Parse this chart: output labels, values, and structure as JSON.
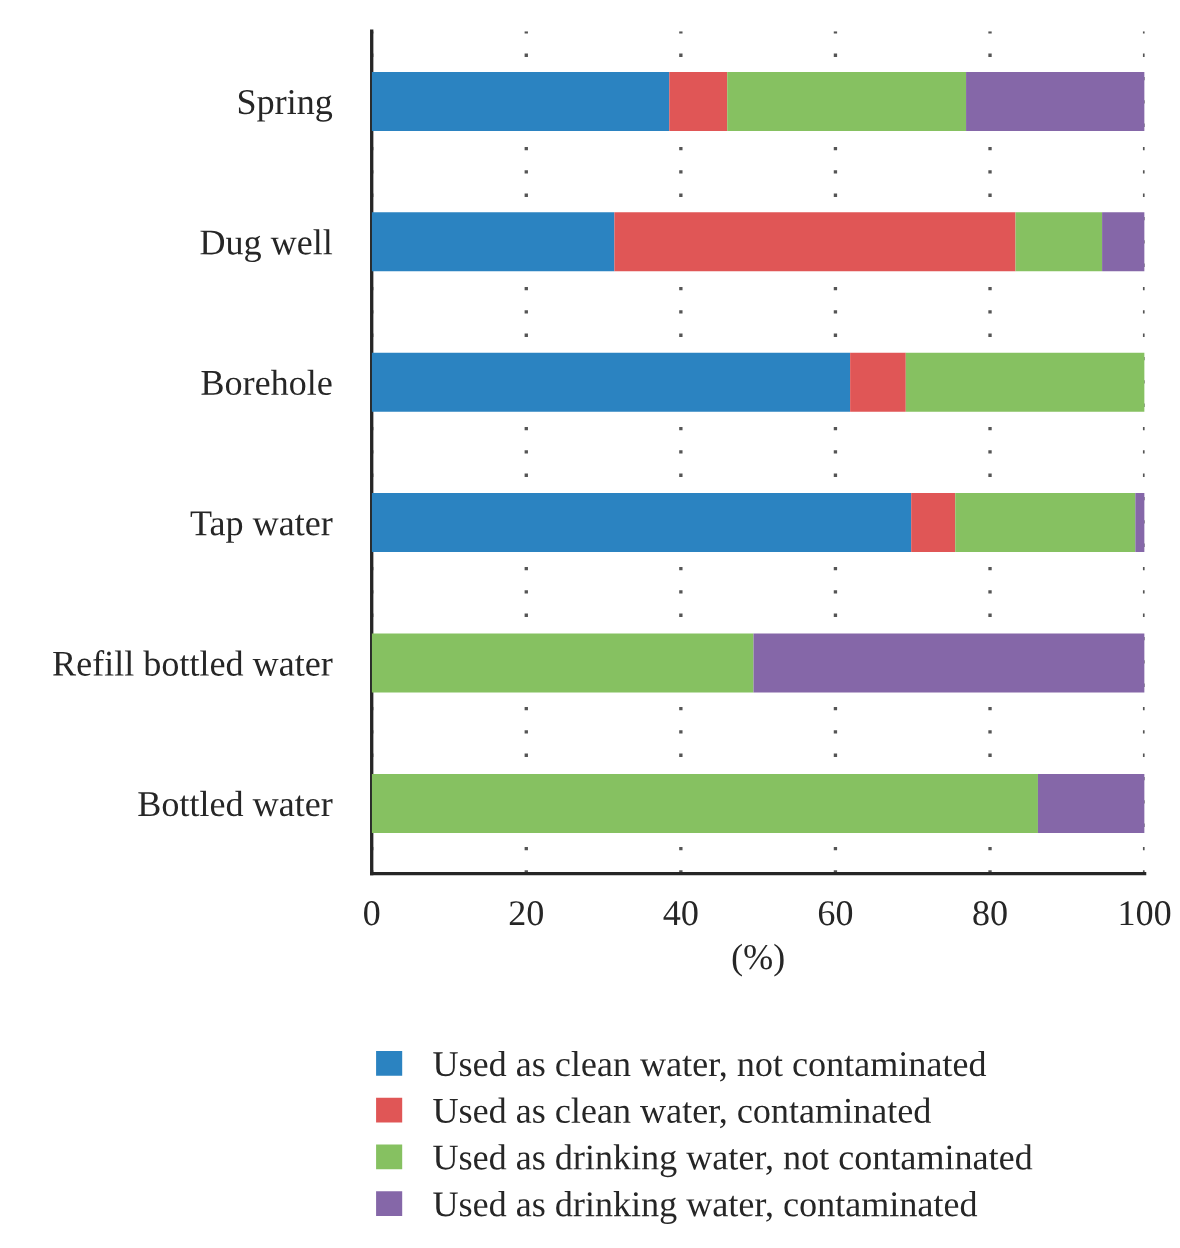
{
  "chart_data": {
    "type": "bar",
    "orientation": "horizontal",
    "stacked": true,
    "xlabel": "(%)",
    "categories": [
      "Spring",
      "Dug well",
      "Borehole",
      "Tap water",
      "Refill bottled water",
      "Bottled water"
    ],
    "series": [
      {
        "name": "Used as clean water, not contaminated",
        "color": "#2b83c1",
        "values": [
          38.5,
          31.4,
          61.9,
          69.8,
          0,
          0
        ]
      },
      {
        "name": "Used as clean water, contaminated",
        "color": "#e05656",
        "values": [
          7.5,
          51.9,
          7.2,
          5.7,
          0,
          0
        ]
      },
      {
        "name": "Used as drinking water, not contaminated",
        "color": "#86c161",
        "values": [
          30.9,
          11.2,
          30.9,
          23.3,
          49.4,
          86.2
        ]
      },
      {
        "name": "Used as drinking water, contaminated",
        "color": "#8567a8",
        "values": [
          23.1,
          5.5,
          0,
          1.2,
          50.6,
          13.8
        ]
      }
    ],
    "xlim": [
      0,
      100
    ],
    "xticks": [
      0,
      20,
      40,
      60,
      80,
      100
    ],
    "grid": "x",
    "legend": "bottom"
  }
}
